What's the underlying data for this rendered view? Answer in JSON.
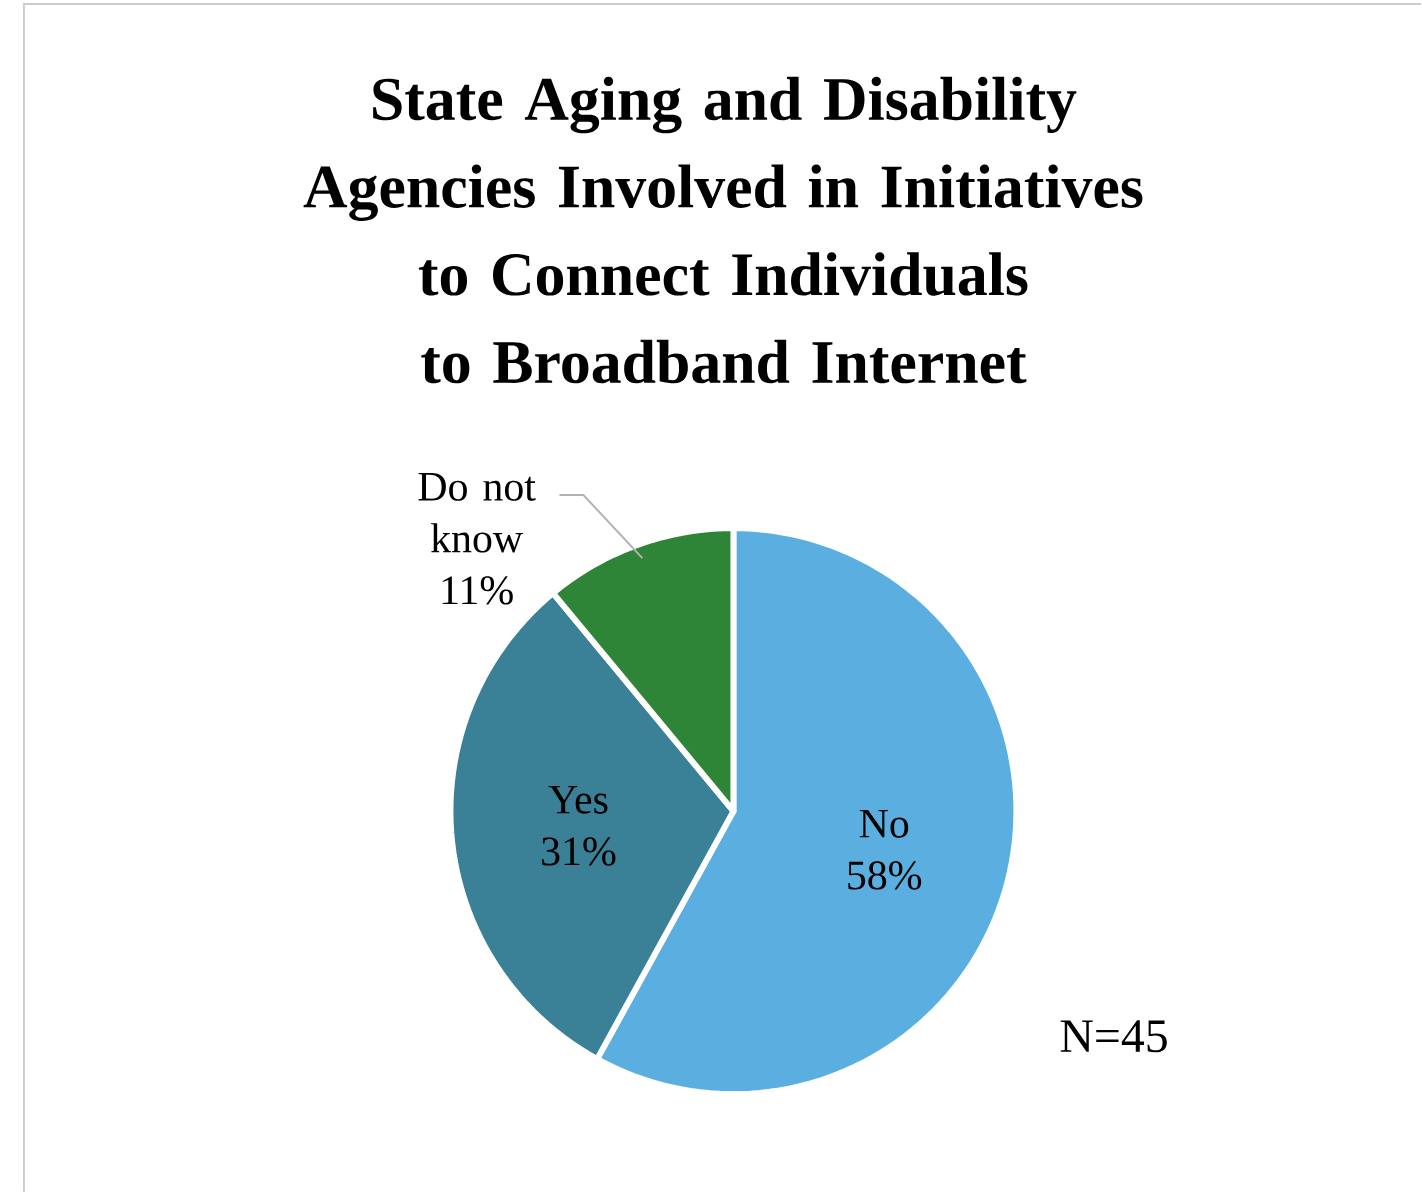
{
  "chart_data": {
    "type": "pie",
    "title": "State Aging and Disability Agencies Involved in Initiatives to Connect Individuals to Broadband Internet",
    "categories": [
      "No",
      "Yes",
      "Do not know"
    ],
    "values": [
      58,
      31,
      11
    ],
    "value_labels": [
      "58%",
      "31%",
      "11%"
    ],
    "colors": [
      "#5aafe0",
      "#3a8096",
      "#2e8538"
    ],
    "annotations": [
      "N=45"
    ]
  }
}
